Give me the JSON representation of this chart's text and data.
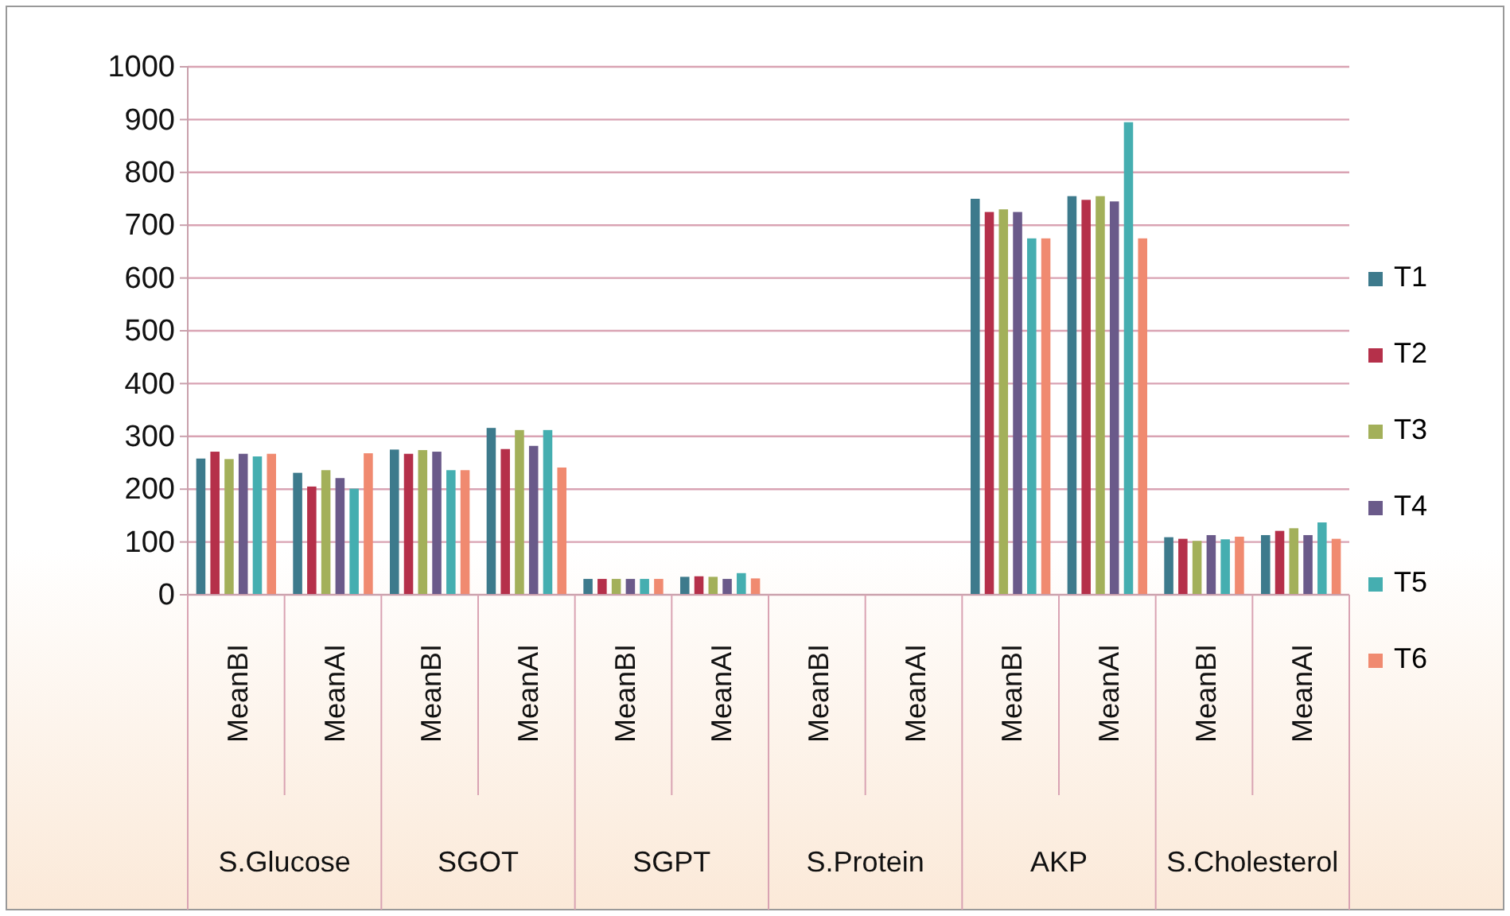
{
  "chart_data": {
    "type": "bar",
    "categories": [
      "MeanBI",
      "MeanAI",
      "MeanBI",
      "MeanAI",
      "MeanBI",
      "MeanAI",
      "MeanBI",
      "MeanAI",
      "MeanBI",
      "MeanAI",
      "MeanBI",
      "MeanAI"
    ],
    "annotations": [
      "S.Glucose",
      "SGOT",
      "SGPT",
      "S.Protein",
      "AKP",
      "S.Cholesterol"
    ],
    "series": [
      {
        "name": "T1",
        "color": "#3d7a8c",
        "values": [
          258,
          231,
          275,
          316,
          30,
          34,
          0,
          0,
          750,
          755,
          109,
          113
        ]
      },
      {
        "name": "T2",
        "color": "#b5304a",
        "values": [
          271,
          205,
          267,
          276,
          30,
          35,
          0,
          0,
          725,
          748,
          106,
          121
        ]
      },
      {
        "name": "T3",
        "color": "#a3b05a",
        "values": [
          257,
          236,
          274,
          312,
          30,
          34,
          0,
          0,
          730,
          755,
          102,
          126
        ]
      },
      {
        "name": "T4",
        "color": "#6a5a8a",
        "values": [
          267,
          221,
          271,
          282,
          30,
          30,
          0,
          0,
          725,
          745,
          113,
          113
        ]
      },
      {
        "name": "T5",
        "color": "#45aeb0",
        "values": [
          262,
          201,
          236,
          312,
          30,
          41,
          0,
          0,
          675,
          895,
          105,
          137
        ]
      },
      {
        "name": "T6",
        "color": "#f08a70",
        "values": [
          267,
          268,
          236,
          241,
          30,
          31,
          0,
          0,
          675,
          675,
          110,
          106
        ]
      }
    ],
    "ylim": [
      0,
      1000
    ],
    "yticks": [
      0,
      100,
      200,
      300,
      400,
      500,
      600,
      700,
      800,
      900,
      1000
    ],
    "grid": "y",
    "legend": "right"
  }
}
